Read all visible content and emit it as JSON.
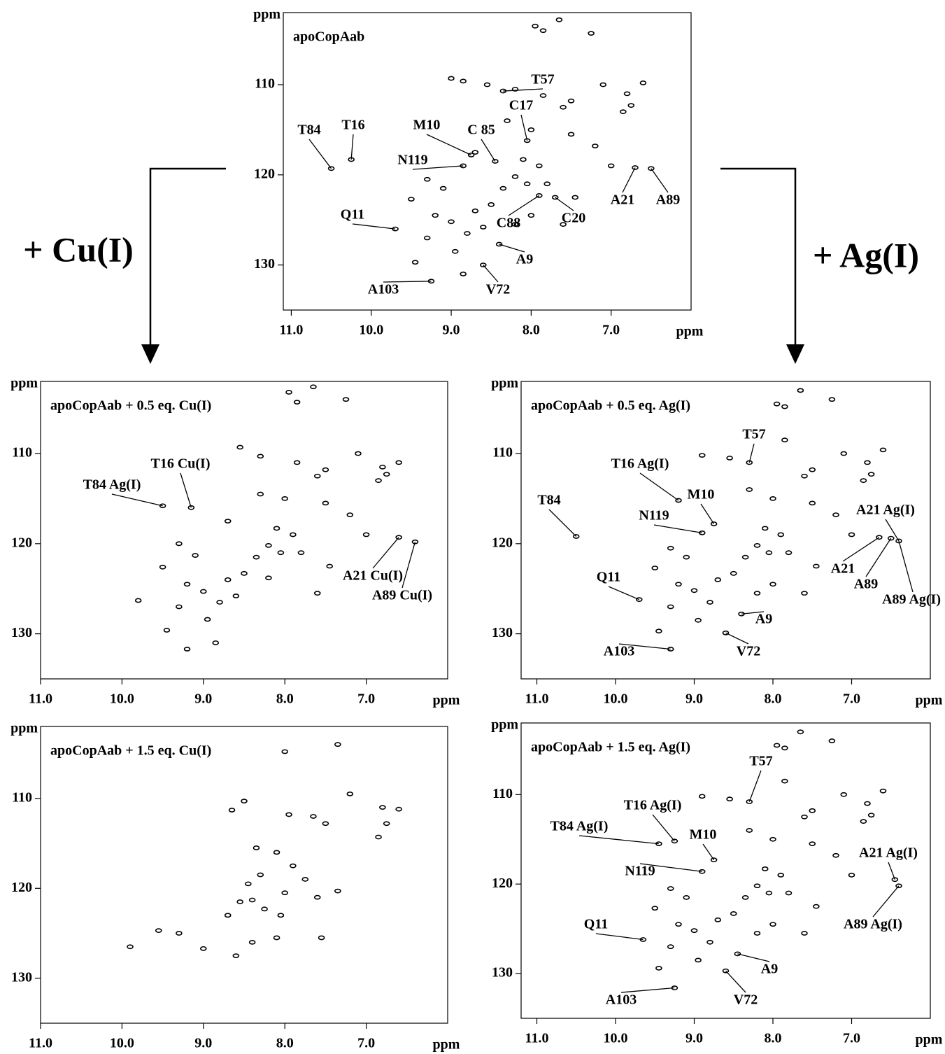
{
  "cu_label": "+ Cu(I)",
  "ag_label": "+ Ag(I)",
  "chart_data": [
    {
      "type": "scatter",
      "title": "apoCopAab",
      "x_label": "ppm",
      "y_label": "ppm",
      "xlim": [
        11.1,
        6.0
      ],
      "ylim": [
        102,
        135
      ],
      "xticks": [
        {
          "value": 11,
          "label": "11.0"
        },
        {
          "value": 10,
          "label": "10.0"
        },
        {
          "value": 9,
          "label": "9.0"
        },
        {
          "value": 8,
          "label": "8.0"
        },
        {
          "value": 7,
          "label": "7.0"
        }
      ],
      "yticks": [
        110,
        120,
        130
      ],
      "x": [
        7.95,
        7.65,
        7.25,
        7.85,
        9.0,
        8.85,
        8.55,
        8.2,
        7.85,
        7.5,
        7.1,
        6.8,
        6.6,
        6.75,
        6.85,
        7.6,
        8.3,
        8.0,
        7.5,
        7.2,
        8.7,
        8.1,
        7.9,
        8.2,
        8.05,
        8.35,
        7.8,
        7.45,
        7.0,
        9.3,
        9.1,
        9.5,
        9.2,
        9.0,
        8.7,
        8.5,
        9.3,
        8.95,
        8.8,
        8.6,
        8.2,
        8.0,
        7.6,
        9.45,
        8.85,
        8.35,
        8.05,
        8.75,
        8.45,
        8.85,
        10.5,
        10.25,
        6.7,
        6.5,
        9.7,
        7.9,
        7.7,
        8.4,
        8.6,
        9.25
      ],
      "y": [
        103.5,
        102.8,
        104.3,
        104.0,
        109.3,
        109.6,
        110.0,
        110.5,
        111.2,
        111.8,
        110.0,
        111.0,
        109.8,
        112.3,
        113.0,
        112.5,
        114.0,
        115.0,
        115.5,
        116.8,
        117.5,
        118.3,
        119.0,
        120.2,
        121.0,
        121.5,
        121.0,
        122.5,
        119.0,
        120.5,
        121.5,
        122.7,
        124.5,
        125.2,
        124.0,
        123.3,
        127.0,
        128.5,
        126.5,
        125.8,
        125.5,
        124.5,
        125.5,
        129.7,
        131.0,
        110.7,
        116.2,
        117.8,
        118.5,
        119.0,
        119.3,
        118.3,
        119.2,
        119.3,
        126.0,
        122.3,
        122.5,
        127.7,
        130.0,
        131.8
      ],
      "annotations": [
        {
          "text": "T57",
          "x": 8.35,
          "y": 110.7
        },
        {
          "text": "C17",
          "x": 8.05,
          "y": 116.2
        },
        {
          "text": "M10",
          "x": 8.75,
          "y": 117.8
        },
        {
          "text": "C 85",
          "x": 8.45,
          "y": 118.5
        },
        {
          "text": "N119",
          "x": 8.85,
          "y": 119.0
        },
        {
          "text": "T84",
          "x": 10.5,
          "y": 119.3
        },
        {
          "text": "T16",
          "x": 10.25,
          "y": 118.3
        },
        {
          "text": "A21",
          "x": 6.7,
          "y": 119.2
        },
        {
          "text": "A89",
          "x": 6.5,
          "y": 119.3
        },
        {
          "text": "Q11",
          "x": 9.7,
          "y": 126.0
        },
        {
          "text": "C88",
          "x": 7.9,
          "y": 122.3
        },
        {
          "text": "C20",
          "x": 7.7,
          "y": 122.5
        },
        {
          "text": "A9",
          "x": 8.4,
          "y": 127.7
        },
        {
          "text": "V72",
          "x": 8.6,
          "y": 130.0
        },
        {
          "text": "A103",
          "x": 9.25,
          "y": 131.8
        }
      ]
    },
    {
      "type": "scatter",
      "title": "apoCopAab + 0.5 eq. Cu(I)",
      "x_label": "ppm",
      "y_label": "ppm",
      "xlim": [
        11.0,
        6.0
      ],
      "ylim": [
        102,
        135
      ],
      "xticks": [
        {
          "value": 11,
          "label": "11.0"
        },
        {
          "value": 10,
          "label": "10.0"
        },
        {
          "value": 9,
          "label": "9.0"
        },
        {
          "value": 8,
          "label": "8.0"
        },
        {
          "value": 7,
          "label": "7.0"
        }
      ],
      "yticks": [
        110,
        120,
        130
      ],
      "x": [
        7.95,
        7.65,
        7.25,
        7.85,
        8.55,
        8.3,
        7.85,
        7.5,
        7.1,
        6.8,
        6.6,
        6.75,
        6.85,
        7.6,
        8.3,
        8.0,
        7.5,
        7.2,
        8.7,
        8.1,
        7.9,
        8.2,
        8.05,
        8.35,
        7.8,
        7.45,
        7.0,
        9.3,
        9.1,
        9.5,
        9.2,
        9.0,
        8.7,
        8.5,
        9.3,
        8.95,
        8.8,
        8.6,
        8.2,
        7.6,
        9.45,
        8.85,
        9.8,
        9.2,
        9.15,
        9.5,
        6.6,
        6.4
      ],
      "y": [
        103.2,
        102.6,
        104.0,
        104.3,
        109.3,
        110.3,
        111.0,
        111.8,
        110.0,
        111.5,
        111.0,
        112.3,
        113.0,
        112.5,
        114.5,
        115.0,
        115.5,
        116.8,
        117.5,
        118.3,
        119.0,
        120.2,
        121.0,
        121.5,
        121.0,
        122.5,
        119.0,
        120.0,
        121.3,
        122.6,
        124.5,
        125.3,
        124.0,
        123.3,
        127.0,
        128.4,
        126.5,
        125.8,
        123.8,
        125.5,
        129.6,
        131.0,
        126.3,
        131.7,
        116.0,
        115.8,
        119.3,
        119.8
      ],
      "annotations": [
        {
          "text": "T16 Cu(I)",
          "x": 9.15,
          "y": 116.0
        },
        {
          "text": "T84 Ag(I)",
          "x": 9.5,
          "y": 115.8
        },
        {
          "text": "A21 Cu(I)",
          "x": 6.6,
          "y": 119.3
        },
        {
          "text": "A89 Cu(I)",
          "x": 6.4,
          "y": 119.8
        }
      ]
    },
    {
      "type": "scatter",
      "title": "apoCopAab + 0.5 eq. Ag(I)",
      "x_label": "ppm",
      "y_label": "ppm",
      "xlim": [
        11.2,
        6.0
      ],
      "ylim": [
        102,
        135
      ],
      "xticks": [
        {
          "value": 11,
          "label": "11.0"
        },
        {
          "value": 10,
          "label": "10.0"
        },
        {
          "value": 9,
          "label": "9.0"
        },
        {
          "value": 8,
          "label": "8.0"
        },
        {
          "value": 7,
          "label": "7.0"
        }
      ],
      "yticks": [
        110,
        120,
        130
      ],
      "x": [
        7.95,
        7.65,
        7.25,
        7.85,
        8.9,
        8.55,
        7.85,
        7.5,
        7.1,
        6.8,
        6.6,
        6.75,
        6.85,
        7.6,
        8.3,
        8.0,
        7.5,
        7.2,
        8.1,
        7.9,
        8.2,
        8.05,
        8.35,
        7.8,
        7.45,
        7.0,
        9.3,
        9.1,
        9.5,
        9.2,
        9.0,
        8.7,
        8.5,
        9.3,
        8.95,
        8.8,
        8.2,
        8.0,
        7.6,
        9.45,
        8.3,
        9.2,
        8.75,
        8.9,
        10.5,
        6.65,
        6.5,
        6.4,
        9.7,
        8.4,
        8.6,
        9.3
      ],
      "y": [
        104.5,
        103.0,
        104.0,
        104.8,
        110.2,
        110.5,
        108.5,
        111.8,
        110.0,
        111.0,
        109.6,
        112.3,
        113.0,
        112.5,
        114.0,
        115.0,
        115.5,
        116.8,
        118.3,
        119.0,
        120.2,
        121.0,
        121.5,
        121.0,
        122.5,
        119.0,
        120.5,
        121.5,
        122.7,
        124.5,
        125.2,
        124.0,
        123.3,
        127.0,
        128.5,
        126.5,
        125.5,
        124.5,
        125.5,
        129.7,
        111.0,
        115.2,
        117.8,
        118.8,
        119.2,
        119.3,
        119.4,
        119.7,
        126.2,
        127.8,
        129.9,
        131.7
      ],
      "annotations": [
        {
          "text": "T57",
          "x": 8.3,
          "y": 111.0
        },
        {
          "text": "T16 Ag(I)",
          "x": 9.2,
          "y": 115.2
        },
        {
          "text": "M10",
          "x": 8.75,
          "y": 117.8
        },
        {
          "text": "N119",
          "x": 8.9,
          "y": 118.8
        },
        {
          "text": "T84",
          "x": 10.5,
          "y": 119.2
        },
        {
          "text": "A21 Ag(I)",
          "x": 6.4,
          "y": 119.7
        },
        {
          "text": "A21",
          "x": 6.65,
          "y": 119.3
        },
        {
          "text": "A89",
          "x": 6.5,
          "y": 119.4
        },
        {
          "text": "A89 Ag(I)",
          "x": 6.4,
          "y": 119.7
        },
        {
          "text": "Q11",
          "x": 9.7,
          "y": 126.2
        },
        {
          "text": "A9",
          "x": 8.4,
          "y": 127.8
        },
        {
          "text": "V72",
          "x": 8.6,
          "y": 129.9
        },
        {
          "text": "A103",
          "x": 9.3,
          "y": 131.7
        }
      ]
    },
    {
      "type": "scatter",
      "title": "apoCopAab + 1.5 eq. Cu(I)",
      "x_label": "ppm",
      "y_label": "ppm",
      "xlim": [
        11.0,
        6.0
      ],
      "ylim": [
        102,
        135
      ],
      "xticks": [
        {
          "value": 11,
          "label": "11.0"
        },
        {
          "value": 10,
          "label": "10.0"
        },
        {
          "value": 9,
          "label": "9.0"
        },
        {
          "value": 8,
          "label": "8.0"
        },
        {
          "value": 7,
          "label": "7.0"
        }
      ],
      "yticks": [
        110,
        120,
        130
      ],
      "x": [
        8.0,
        7.35,
        8.5,
        8.65,
        7.95,
        7.65,
        7.5,
        7.2,
        6.8,
        6.75,
        6.6,
        6.85,
        8.35,
        8.1,
        7.9,
        8.3,
        8.45,
        8.0,
        7.75,
        8.4,
        8.55,
        8.25,
        8.05,
        7.6,
        8.4,
        8.6,
        9.0,
        9.3,
        9.55,
        9.9,
        8.7,
        8.1,
        7.55,
        7.35
      ],
      "y": [
        104.8,
        104.0,
        110.3,
        111.3,
        111.8,
        112.0,
        112.8,
        109.5,
        111.0,
        112.8,
        111.2,
        114.3,
        115.5,
        116.0,
        117.5,
        118.5,
        119.5,
        120.5,
        119.0,
        121.3,
        121.5,
        122.3,
        123.0,
        121.0,
        126.0,
        127.5,
        126.7,
        125.0,
        124.7,
        126.5,
        123.0,
        125.5,
        125.5,
        120.3
      ],
      "annotations": []
    },
    {
      "type": "scatter",
      "title": "apoCopAab + 1.5 eq. Ag(I)",
      "x_label": "ppm",
      "y_label": "ppm",
      "xlim": [
        11.2,
        6.0
      ],
      "ylim": [
        102,
        135
      ],
      "xticks": [
        {
          "value": 11,
          "label": "11.0"
        },
        {
          "value": 10,
          "label": "10.0"
        },
        {
          "value": 9,
          "label": "9.0"
        },
        {
          "value": 8,
          "label": "8.0"
        },
        {
          "value": 7,
          "label": "7.0"
        }
      ],
      "yticks": [
        110,
        120,
        130
      ],
      "x": [
        7.95,
        7.65,
        7.25,
        7.85,
        8.9,
        8.55,
        7.85,
        7.5,
        7.1,
        6.8,
        6.6,
        6.75,
        6.85,
        7.6,
        8.3,
        8.0,
        7.5,
        7.2,
        8.1,
        7.9,
        8.2,
        8.05,
        8.35,
        7.8,
        7.45,
        7.0,
        9.3,
        9.1,
        9.5,
        9.2,
        9.0,
        8.7,
        8.5,
        9.3,
        8.95,
        8.8,
        8.2,
        8.0,
        7.6,
        9.45,
        8.3,
        9.25,
        9.45,
        8.75,
        8.9,
        6.45,
        6.4,
        9.65,
        8.45,
        8.6,
        9.25
      ],
      "y": [
        104.5,
        103.0,
        104.0,
        104.8,
        110.2,
        110.5,
        108.5,
        111.8,
        110.0,
        111.0,
        109.6,
        112.3,
        113.0,
        112.5,
        114.0,
        115.0,
        115.5,
        116.8,
        118.3,
        119.0,
        120.2,
        121.0,
        121.5,
        121.0,
        122.5,
        119.0,
        120.5,
        121.5,
        122.7,
        124.5,
        125.2,
        124.0,
        123.3,
        127.0,
        128.5,
        126.5,
        125.5,
        124.5,
        125.5,
        129.4,
        110.8,
        115.2,
        115.5,
        117.3,
        118.6,
        119.5,
        120.2,
        126.2,
        127.8,
        129.7,
        131.6
      ],
      "annotations": [
        {
          "text": "T57",
          "x": 8.3,
          "y": 110.8
        },
        {
          "text": "T16 Ag(I)",
          "x": 9.25,
          "y": 115.2
        },
        {
          "text": "T84 Ag(I)",
          "x": 9.45,
          "y": 115.5
        },
        {
          "text": "M10",
          "x": 8.75,
          "y": 117.3
        },
        {
          "text": "N119",
          "x": 8.9,
          "y": 118.6
        },
        {
          "text": "A21 Ag(I)",
          "x": 6.45,
          "y": 119.5
        },
        {
          "text": "A89 Ag(I)",
          "x": 6.4,
          "y": 120.2
        },
        {
          "text": "Q11",
          "x": 9.65,
          "y": 126.2
        },
        {
          "text": "A9",
          "x": 8.45,
          "y": 127.8
        },
        {
          "text": "V72",
          "x": 8.6,
          "y": 129.7
        },
        {
          "text": "A103",
          "x": 9.25,
          "y": 131.6
        }
      ]
    }
  ]
}
